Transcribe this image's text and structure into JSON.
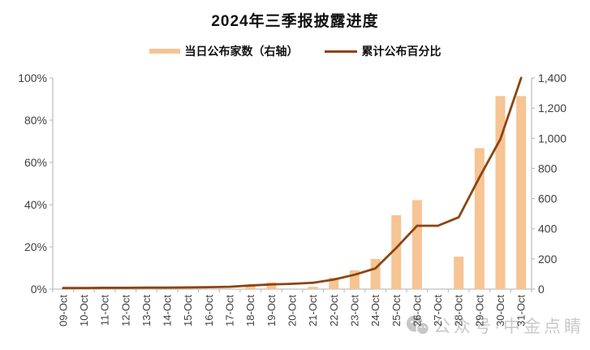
{
  "title": "2024年三季报披露进度",
  "legend": {
    "bar_label": "当日公布家数（右轴）",
    "line_label": "累计公布百分比"
  },
  "watermark": {
    "text": "公众号·中金点睛",
    "icon": "wechat-icon"
  },
  "chart_data": {
    "type": "bar",
    "title": "2024年三季报披露进度",
    "categories": [
      "09-Oct",
      "10-Oct",
      "11-Oct",
      "12-Oct",
      "13-Oct",
      "14-Oct",
      "15-Oct",
      "16-Oct",
      "17-Oct",
      "18-Oct",
      "19-Oct",
      "20-Oct",
      "21-Oct",
      "22-Oct",
      "23-Oct",
      "24-Oct",
      "25-Oct",
      "26-Oct",
      "27-Oct",
      "28-Oct",
      "29-Oct",
      "30-Oct",
      "31-Oct"
    ],
    "series": [
      {
        "name": "当日公布家数（右轴）",
        "type": "bar",
        "axis": "right",
        "values": [
          0,
          0,
          0,
          0,
          0,
          0,
          0,
          0,
          0,
          30,
          45,
          0,
          15,
          75,
          125,
          200,
          490,
          590,
          0,
          215,
          935,
          1280,
          1280
        ]
      },
      {
        "name": "累计公布百分比",
        "type": "line",
        "axis": "left",
        "values": [
          0.5,
          0.5,
          0.6,
          0.6,
          0.7,
          0.7,
          0.8,
          0.9,
          1.1,
          1.7,
          2.2,
          2.5,
          3.0,
          4.5,
          6.8,
          9.8,
          19.5,
          30,
          30,
          34,
          53,
          71,
          100
        ]
      }
    ],
    "axes": {
      "left": {
        "min": 0,
        "max": 100,
        "tick_labels": [
          "0%",
          "20%",
          "40%",
          "60%",
          "80%",
          "100%"
        ]
      },
      "right": {
        "min": 0,
        "max": 1400,
        "tick_labels": [
          "0",
          "200",
          "400",
          "600",
          "800",
          "1,000",
          "1,200",
          "1,400"
        ]
      }
    },
    "legend_position": "top",
    "grid": false,
    "colors": {
      "bar": "#F7C493",
      "line": "#8C4510",
      "axis": "#BFBFBF",
      "tick_text": "#3F3F3F",
      "watermark": "#C9C9C9"
    }
  }
}
